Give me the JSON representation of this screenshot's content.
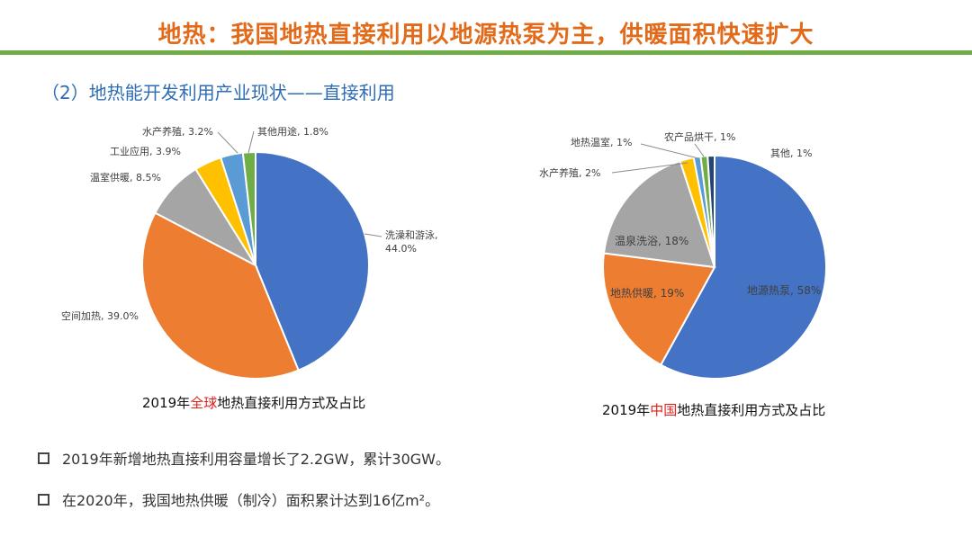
{
  "header": {
    "title": "地热：我国地热直接利用以地源热泵为主，供暖面积快速扩大",
    "subtitle": "（2）地热能开发利用产业现状——直接利用"
  },
  "colors": {
    "title": "#e26b1b",
    "rule": "#70ad47",
    "subtitle": "#2e6db4",
    "highlight": "#e0201b"
  },
  "chart_data": [
    {
      "type": "pie",
      "title_prefix": "2019年",
      "title_highlight": "全球",
      "title_suffix": "地热直接利用方式及占比",
      "slices": [
        {
          "label": "洗澡和游泳",
          "value_text": "44.0%",
          "value": 44.0,
          "color": "#4472c4"
        },
        {
          "label": "空间加热",
          "value_text": "39.0%",
          "value": 39.0,
          "color": "#ed7d31"
        },
        {
          "label": "温室供暖",
          "value_text": "8.5%",
          "value": 8.5,
          "color": "#a5a5a5"
        },
        {
          "label": "工业应用",
          "value_text": "3.9%",
          "value": 3.9,
          "color": "#ffc000"
        },
        {
          "label": "水产养殖",
          "value_text": "3.2%",
          "value": 3.2,
          "color": "#5b9bd5"
        },
        {
          "label": "其他用途",
          "value_text": "1.8%",
          "value": 1.8,
          "color": "#70ad47"
        }
      ]
    },
    {
      "type": "pie",
      "title_prefix": "2019年",
      "title_highlight": "中国",
      "title_suffix": "地热直接利用方式及占比",
      "slices": [
        {
          "label": "地源热泵",
          "value_text": "58%",
          "value": 58,
          "color": "#4472c4"
        },
        {
          "label": "地热供暖",
          "value_text": "19%",
          "value": 19,
          "color": "#ed7d31"
        },
        {
          "label": "温泉洗浴",
          "value_text": "18%",
          "value": 18,
          "color": "#a5a5a5"
        },
        {
          "label": "水产养殖",
          "value_text": "2%",
          "value": 2,
          "color": "#ffc000"
        },
        {
          "label": "地热温室",
          "value_text": "1%",
          "value": 1,
          "color": "#5b9bd5"
        },
        {
          "label": "农产品烘干",
          "value_text": "1%",
          "value": 1,
          "color": "#70ad47"
        },
        {
          "label": "其他",
          "value_text": "1%",
          "value": 1,
          "color": "#264478"
        }
      ]
    }
  ],
  "bullets": [
    "2019年新增地热直接利用容量增长了2.2GW，累计30GW。",
    "在2020年，我国地热供暖（制冷）面积累计达到16亿m²。"
  ]
}
